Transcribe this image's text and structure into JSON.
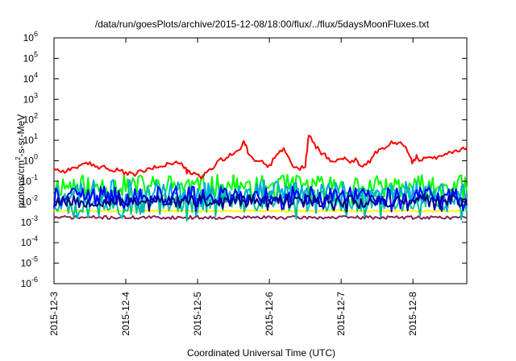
{
  "chart_data": {
    "type": "line",
    "title": "/data/run/goesPlots/archive/2015-12-08/18:00/flux/../flux/5daysMoonFluxes.txt",
    "xlabel": "Coordinated Universal Time (UTC)",
    "ylabel": {
      "base": "protons/cm",
      "sup": "2",
      "rest": "-s-sr-MeV"
    },
    "yscale": "log",
    "ylim": [
      1e-06,
      1000000.0
    ],
    "xlim": [
      0,
      5.75
    ],
    "grid": false,
    "legend": "none",
    "x_ticks": [
      {
        "x": 0,
        "label": "2015-12-3"
      },
      {
        "x": 1,
        "label": "2015-12-4"
      },
      {
        "x": 2,
        "label": "2015-12-5"
      },
      {
        "x": 3,
        "label": "2015-12-6"
      },
      {
        "x": 4,
        "label": "2015-12-7"
      },
      {
        "x": 5,
        "label": "2015-12-8"
      }
    ],
    "y_ticks": [
      {
        "exp": 6,
        "base": "10",
        "sup": "6"
      },
      {
        "exp": 5,
        "base": "10",
        "sup": "5"
      },
      {
        "exp": 4,
        "base": "10",
        "sup": "4"
      },
      {
        "exp": 3,
        "base": "10",
        "sup": "3"
      },
      {
        "exp": 2,
        "base": "10",
        "sup": "2"
      },
      {
        "exp": 1,
        "base": "10",
        "sup": "1"
      },
      {
        "exp": 0,
        "base": "10",
        "sup": "0"
      },
      {
        "exp": -1,
        "base": "10",
        "sup": "-1"
      },
      {
        "exp": -2,
        "base": "10",
        "sup": "-2"
      },
      {
        "exp": -3,
        "base": "10",
        "sup": "-3"
      },
      {
        "exp": -4,
        "base": "10",
        "sup": "-4"
      },
      {
        "exp": -5,
        "base": "10",
        "sup": "-5"
      },
      {
        "exp": -6,
        "base": "10",
        "sup": "-6"
      }
    ],
    "series": [
      {
        "color": "#ff0000",
        "style": "smooth",
        "x": [
          0,
          0.1,
          0.2,
          0.3,
          0.4,
          0.5,
          0.6,
          0.7,
          0.8,
          0.9,
          1.0,
          1.1,
          1.2,
          1.3,
          1.4,
          1.5,
          1.6,
          1.7,
          1.8,
          1.85,
          1.9,
          2.0,
          2.05,
          2.1,
          2.2,
          2.3,
          2.4,
          2.5,
          2.6,
          2.65,
          2.7,
          2.8,
          2.9,
          3.0,
          3.1,
          3.2,
          3.3,
          3.4,
          3.5,
          3.55,
          3.6,
          3.7,
          3.8,
          3.9,
          4.0,
          4.1,
          4.2,
          4.3,
          4.4,
          4.5,
          4.6,
          4.7,
          4.8,
          4.9,
          4.95,
          5.0,
          5.05,
          5.1,
          5.2,
          5.3,
          5.4,
          5.5,
          5.6,
          5.7,
          5.75
        ],
        "y": [
          0.45,
          0.3,
          0.35,
          0.5,
          0.6,
          0.7,
          0.5,
          0.55,
          0.3,
          0.35,
          0.25,
          0.2,
          0.3,
          0.35,
          0.45,
          0.6,
          0.7,
          0.8,
          0.6,
          0.3,
          0.25,
          0.2,
          0.15,
          0.25,
          0.4,
          1.0,
          1.3,
          2.5,
          4,
          9,
          2.5,
          1.0,
          0.9,
          0.5,
          2.5,
          4,
          0.7,
          0.4,
          0.6,
          20,
          8,
          3,
          1.5,
          0.8,
          1.5,
          0.9,
          1.2,
          0.5,
          1.0,
          3,
          3.5,
          8,
          7,
          6,
          2.0,
          0.7,
          2.0,
          1.0,
          1.5,
          1.3,
          2.0,
          2.5,
          3.0,
          4.0,
          4.5
        ]
      },
      {
        "color": "#00ff00",
        "style": "noisy",
        "center": 0.06,
        "spread": 0.55,
        "seed": 11,
        "x": [
          0,
          5.75
        ]
      },
      {
        "color": "#00a8e0",
        "style": "noisy",
        "center": 0.03,
        "spread": 0.6,
        "seed": 23,
        "x": [
          0,
          5.75
        ]
      },
      {
        "color": "#00c0a0",
        "style": "noisy",
        "center": 0.012,
        "spread": 0.6,
        "seed": 37,
        "x": [
          0,
          5.75
        ]
      },
      {
        "color": "#0000ff",
        "style": "noisy",
        "center": 0.02,
        "spread": 0.45,
        "seed": 41,
        "x": [
          0,
          5.75
        ]
      },
      {
        "color": "#00008b",
        "style": "noisy",
        "center": 0.011,
        "spread": 0.3,
        "seed": 53,
        "x": [
          0,
          5.75
        ]
      },
      {
        "color": "#ffff00",
        "style": "flat",
        "center": 0.0035,
        "spread": 0.05,
        "seed": 61,
        "x": [
          0,
          5.75
        ]
      },
      {
        "color": "#8b2252",
        "style": "flat",
        "center": 0.0017,
        "spread": 0.08,
        "seed": 71,
        "x": [
          0,
          5.75
        ]
      }
    ]
  }
}
